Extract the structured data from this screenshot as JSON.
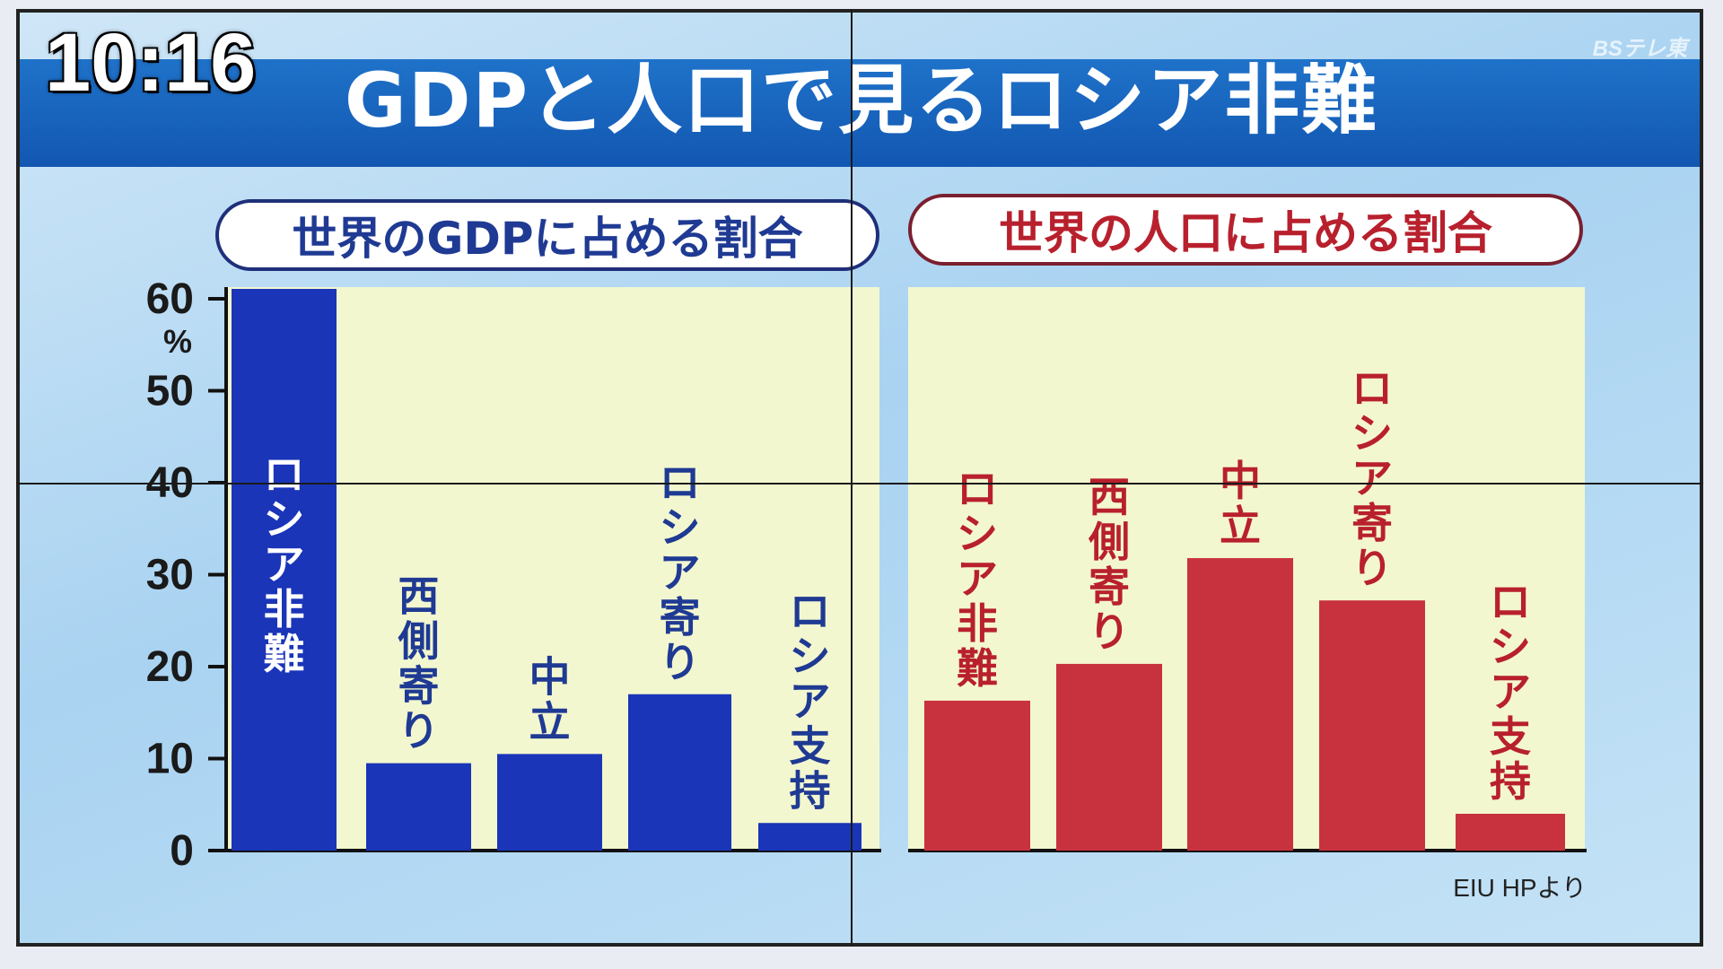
{
  "overlay": {
    "clock": "10:16",
    "logo": "BSテレ東",
    "title": "GDPと人口で見るロシア非難",
    "source": "EIU HPより"
  },
  "colors": {
    "gdp_bar": "#1a35b8",
    "gdp_text": "#1f3a93",
    "pop_bar": "#c8323f",
    "pop_text": "#b8202d",
    "plot_bg": "#f3f7cf",
    "bar_label_white": "#ffffff"
  },
  "chart_data": [
    {
      "type": "bar",
      "title": "世界のGDPに占める割合",
      "unit": "%",
      "categories": [
        "ロシア非難",
        "西側寄り",
        "中立",
        "ロシア寄り",
        "ロシア支持"
      ],
      "values": [
        63,
        9.5,
        10.5,
        17,
        3
      ],
      "ylim": [
        0,
        60
      ],
      "yticks": [
        "0",
        "10",
        "20",
        "30",
        "40",
        "50",
        "60"
      ],
      "grid": false,
      "legend": "none"
    },
    {
      "type": "bar",
      "title": "世界の人口に占める割合",
      "categories": [
        "ロシア非難",
        "西側寄り",
        "中立",
        "ロシア寄り",
        "ロシア支持"
      ],
      "values": [
        16.3,
        20.3,
        31.8,
        27.2,
        4
      ],
      "ylim": [
        0,
        60
      ],
      "grid": false,
      "legend": "none"
    }
  ]
}
